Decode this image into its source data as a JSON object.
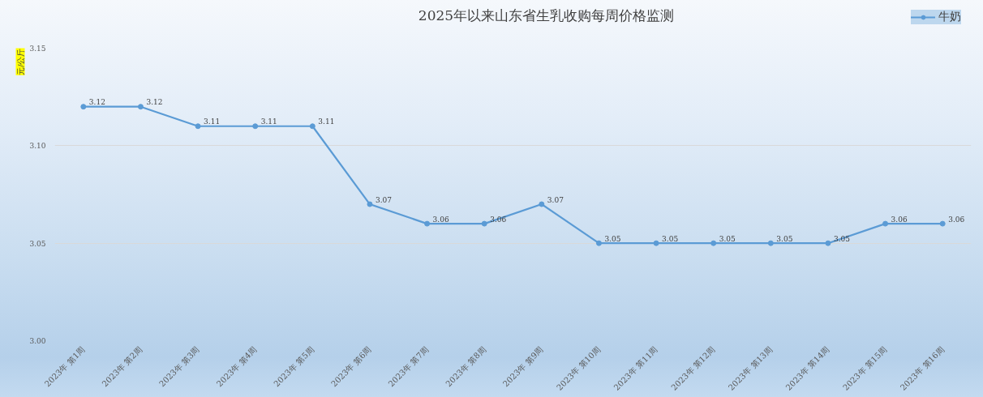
{
  "chart_data": {
    "type": "line",
    "title": "2025年以来山东省生乳收购每周价格监测",
    "ylabel": "元/公斤",
    "categories": [
      "2023年 第1周",
      "2023年 第2周",
      "2023年 第3周",
      "2023年 第4周",
      "2023年 第5周",
      "2023年 第6周",
      "2023年 第7周",
      "2023年 第8周",
      "2023年 第9周",
      "2023年 第10周",
      "2023年 第11周",
      "2023年 第12周",
      "2023年 第13周",
      "2023年 第14周",
      "2023年 第15周",
      "2023年 第16周"
    ],
    "series": [
      {
        "name": "牛奶",
        "color": "#5b9bd5",
        "values": [
          3.12,
          3.12,
          3.11,
          3.11,
          3.11,
          3.07,
          3.06,
          3.06,
          3.07,
          3.05,
          3.05,
          3.05,
          3.05,
          3.05,
          3.06,
          3.06
        ]
      }
    ],
    "ylim": [
      3.0,
      3.15
    ],
    "yticks": [
      {
        "value": 3.0,
        "label": "3.00"
      },
      3.05,
      {
        "value": 3.1,
        "label": "3.10"
      },
      3.15
    ],
    "grid": "y",
    "legend": "top right",
    "marker": "circle",
    "line_style": "solid",
    "data_labels": true
  }
}
